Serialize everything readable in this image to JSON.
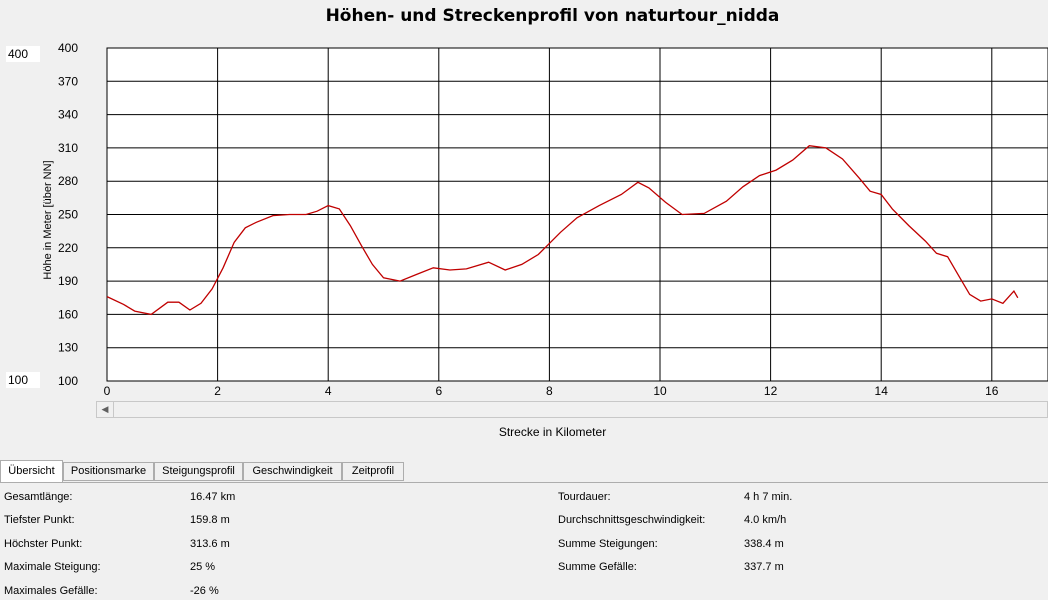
{
  "window": {
    "title": "Höhen- und Streckenprofil von naturtour_nidda"
  },
  "y_range_controls": {
    "max_value": "400",
    "min_value": "100"
  },
  "chart_data": {
    "type": "line",
    "title": "Höhen- und Streckenprofil von naturtour_nidda",
    "xlabel": "Strecke in Kilometer",
    "ylabel": "Höhe in Meter [über NN]",
    "xlim": [
      0,
      17.2
    ],
    "ylim": [
      100,
      400
    ],
    "x_ticks": [
      "0",
      "2",
      "4",
      "6",
      "8",
      "10",
      "12",
      "14",
      "16"
    ],
    "y_ticks": [
      "400",
      "370",
      "340",
      "310",
      "280",
      "250",
      "220",
      "190",
      "160",
      "130",
      "100"
    ],
    "grid": true,
    "series": [
      {
        "color": "#c00000",
        "x": [
          0,
          0.3,
          0.5,
          0.8,
          1.1,
          1.3,
          1.5,
          1.7,
          1.9,
          2.1,
          2.3,
          2.5,
          2.7,
          3.0,
          3.3,
          3.6,
          3.8,
          4.0,
          4.2,
          4.4,
          4.6,
          4.8,
          5.0,
          5.3,
          5.6,
          5.9,
          6.2,
          6.5,
          6.9,
          7.2,
          7.5,
          7.8,
          8.0,
          8.2,
          8.5,
          8.9,
          9.3,
          9.6,
          9.8,
          10.1,
          10.4,
          10.8,
          11.2,
          11.5,
          11.8,
          12.1,
          12.4,
          12.7,
          13.0,
          13.3,
          13.6,
          13.8,
          14.0,
          14.2,
          14.5,
          14.8,
          15.0,
          15.2,
          15.4,
          15.6,
          15.8,
          16.0,
          16.2,
          16.4,
          16.47
        ],
        "y": [
          176,
          169,
          163,
          160,
          171,
          171,
          164,
          170,
          183,
          202,
          225,
          238,
          243,
          249,
          250,
          250,
          253,
          258,
          255,
          240,
          222,
          205,
          193,
          190,
          196,
          202,
          200,
          201,
          207,
          200,
          205,
          214,
          224,
          234,
          247,
          258,
          268,
          279,
          274,
          261,
          250,
          251,
          262,
          275,
          285,
          290,
          299,
          312,
          310,
          300,
          283,
          271,
          268,
          255,
          240,
          226,
          215,
          212,
          195,
          178,
          172,
          174,
          170,
          181,
          175
        ]
      }
    ]
  },
  "tabs": [
    {
      "label": "Übersicht",
      "active": true
    },
    {
      "label": "Positionsmarke"
    },
    {
      "label": "Steigungsprofil"
    },
    {
      "label": "Geschwindigkeit"
    },
    {
      "label": "Zeitprofil"
    }
  ],
  "stats_left": [
    {
      "label": "Gesamtlänge:",
      "value": "16.47 km"
    },
    {
      "label": "Tiefster Punkt:",
      "value": "159.8 m"
    },
    {
      "label": "Höchster Punkt:",
      "value": "313.6 m"
    },
    {
      "label": "Maximale Steigung:",
      "value": "25 %"
    },
    {
      "label": "Maximales Gefälle:",
      "value": "-26 %"
    }
  ],
  "stats_right": [
    {
      "label": "Tourdauer:",
      "value": "4 h 7 min."
    },
    {
      "label": "Durchschnittsgeschwindigkeit:",
      "value": "4.0 km/h"
    },
    {
      "label": "Summe Steigungen:",
      "value": "338.4 m"
    },
    {
      "label": "Summe Gefälle:",
      "value": "337.7 m"
    }
  ]
}
